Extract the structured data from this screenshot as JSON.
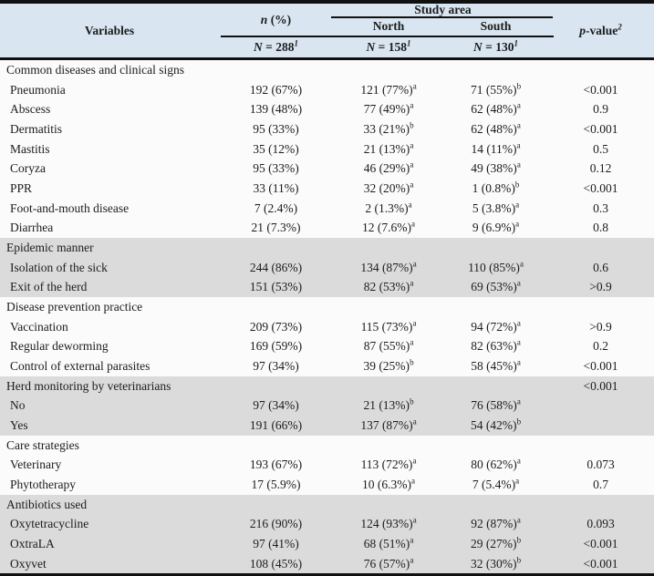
{
  "colors": {
    "header_bg": "#d9e6f2",
    "section_gray": "#dbdbdb",
    "section_white": "#fbfbfb",
    "rule": "#101010",
    "text": "#1c1c1c"
  },
  "table": {
    "header": {
      "variables": "Variables",
      "n_pct": {
        "italic": "n",
        "rest": " (%)"
      },
      "study_area": "Study area",
      "north": "North",
      "south": "South",
      "p_value": {
        "italic": "p",
        "rest": "-value",
        "sup": "2"
      },
      "n_total": {
        "italic": "N",
        "rest": " = 288",
        "sup": "1"
      },
      "n_north": {
        "italic": "N",
        "rest": " = 158",
        "sup": "1"
      },
      "n_south": {
        "italic": "N",
        "rest": " = 130",
        "sup": "1"
      }
    },
    "sections": [
      {
        "title": "Common diseases and clinical signs",
        "shade": "white",
        "p": "",
        "rows": [
          {
            "label": "Pneumonia",
            "n": "192 (67%)",
            "north": "121 (77%)",
            "north_sup": "a",
            "south": "71 (55%)",
            "south_sup": "b",
            "p": "<0.001"
          },
          {
            "label": "Abscess",
            "n": "139 (48%)",
            "north": "77 (49%)",
            "north_sup": "a",
            "south": "62 (48%)",
            "south_sup": "a",
            "p": "0.9"
          },
          {
            "label": "Dermatitis",
            "n": "95 (33%)",
            "north": "33 (21%)",
            "north_sup": "b",
            "south": "62 (48%)",
            "south_sup": "a",
            "p": "<0.001"
          },
          {
            "label": "Mastitis",
            "n": "35 (12%)",
            "north": "21 (13%)",
            "north_sup": "a",
            "south": "14 (11%)",
            "south_sup": "a",
            "p": "0.5"
          },
          {
            "label": "Coryza",
            "n": "95 (33%)",
            "north": "46 (29%)",
            "north_sup": "a",
            "south": "49 (38%)",
            "south_sup": "a",
            "p": "0.12"
          },
          {
            "label": "PPR",
            "n": "33 (11%)",
            "north": "32 (20%)",
            "north_sup": "a",
            "south": "1 (0.8%)",
            "south_sup": "b",
            "p": "<0.001"
          },
          {
            "label": "Foot-and-mouth disease",
            "n": "7 (2.4%)",
            "north": "2 (1.3%)",
            "north_sup": "a",
            "south": "5 (3.8%)",
            "south_sup": "a",
            "p": "0.3"
          },
          {
            "label": "Diarrhea",
            "n": "21 (7.3%)",
            "north": "12 (7.6%)",
            "north_sup": "a",
            "south": "9 (6.9%)",
            "south_sup": "a",
            "p": "0.8"
          }
        ]
      },
      {
        "title": "Epidemic manner",
        "shade": "gray",
        "p": "",
        "rows": [
          {
            "label": "Isolation of the sick",
            "n": "244 (86%)",
            "north": "134 (87%)",
            "north_sup": "a",
            "south": "110 (85%)",
            "south_sup": "a",
            "p": "0.6"
          },
          {
            "label": "Exit of the herd",
            "n": "151 (53%)",
            "north": "82 (53%)",
            "north_sup": "a",
            "south": "69 (53%)",
            "south_sup": "a",
            "p": ">0.9"
          }
        ]
      },
      {
        "title": "Disease prevention practice",
        "shade": "white",
        "p": "",
        "rows": [
          {
            "label": "Vaccination",
            "n": "209 (73%)",
            "north": "115 (73%)",
            "north_sup": "a",
            "south": "94 (72%)",
            "south_sup": "a",
            "p": ">0.9"
          },
          {
            "label": "Regular deworming",
            "n": "169 (59%)",
            "north": "87 (55%)",
            "north_sup": "a",
            "south": "82 (63%)",
            "south_sup": "a",
            "p": "0.2"
          },
          {
            "label": "Control of external parasites",
            "n": "97 (34%)",
            "north": "39 (25%)",
            "north_sup": "b",
            "south": "58 (45%)",
            "south_sup": "a",
            "p": "<0.001"
          }
        ]
      },
      {
        "title": "Herd monitoring by veterinarians",
        "shade": "gray",
        "p": "<0.001",
        "rows": [
          {
            "label": "No",
            "n": "97 (34%)",
            "north": "21 (13%)",
            "north_sup": "b",
            "south": "76 (58%)",
            "south_sup": "a",
            "p": ""
          },
          {
            "label": "Yes",
            "n": "191 (66%)",
            "north": "137 (87%)",
            "north_sup": "a",
            "south": "54 (42%)",
            "south_sup": "b",
            "p": ""
          }
        ]
      },
      {
        "title": "Care strategies",
        "shade": "white",
        "p": "",
        "rows": [
          {
            "label": "Veterinary",
            "n": "193 (67%)",
            "north": "113 (72%)",
            "north_sup": "a",
            "south": "80 (62%)",
            "south_sup": "a",
            "p": "0.073"
          },
          {
            "label": "Phytotherapy",
            "n": "17 (5.9%)",
            "north": "10 (6.3%)",
            "north_sup": "a",
            "south": "7 (5.4%)",
            "south_sup": "a",
            "p": "0.7"
          }
        ]
      },
      {
        "title": "Antibiotics used",
        "shade": "gray",
        "p": "",
        "rows": [
          {
            "label": "Oxytetracycline",
            "n": "216 (90%)",
            "north": "124 (93%)",
            "north_sup": "a",
            "south": "92 (87%)",
            "south_sup": "a",
            "p": "0.093"
          },
          {
            "label": "OxtraLA",
            "n": "97 (41%)",
            "north": "68 (51%)",
            "north_sup": "a",
            "south": "29 (27%)",
            "south_sup": "b",
            "p": "<0.001"
          },
          {
            "label": "Oxyvet",
            "n": "108 (45%)",
            "north": "76 (57%)",
            "north_sup": "a",
            "south": "32 (30%)",
            "south_sup": "b",
            "p": "<0.001"
          }
        ]
      }
    ]
  }
}
